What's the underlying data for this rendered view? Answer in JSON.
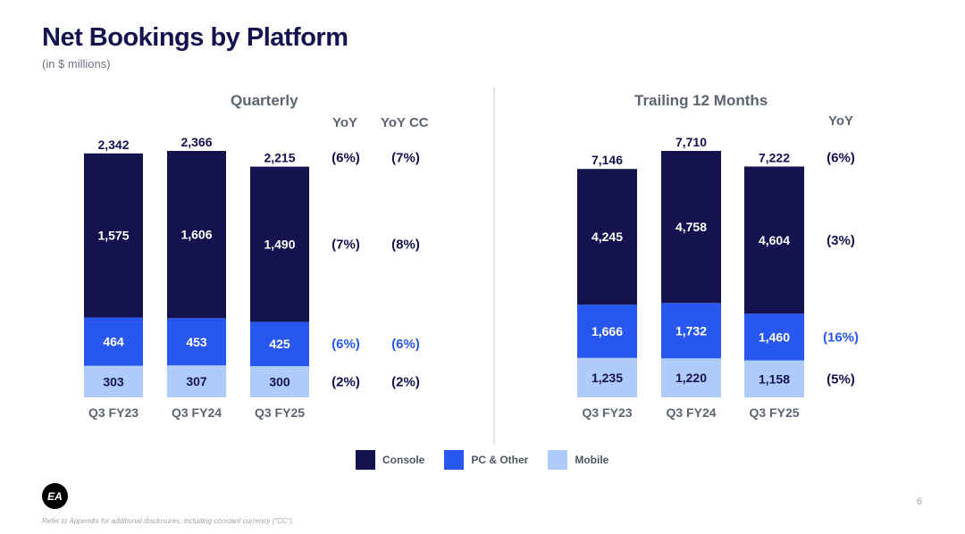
{
  "header": {
    "title": "Net Bookings by Platform",
    "subtitle": "(in $ millions)"
  },
  "legend": [
    {
      "label": "Console",
      "color": "#14124f"
    },
    {
      "label": "PC & Other",
      "color": "#2757f0"
    },
    {
      "label": "Mobile",
      "color": "#aecbfa"
    }
  ],
  "footer": {
    "logo_text": "EA",
    "page_number": "6",
    "footnote": "Refer to Appendix for additional disclosures, including constant currency (\"CC\")."
  },
  "chart_data": [
    {
      "type": "bar",
      "stacked": true,
      "title": "Quarterly",
      "categories": [
        "Q3 FY23",
        "Q3 FY24",
        "Q3 FY25"
      ],
      "series": [
        {
          "name": "Mobile",
          "values": [
            303,
            307,
            300
          ],
          "labels": [
            "303",
            "307",
            "300"
          ],
          "color": "#aecbfa"
        },
        {
          "name": "PC & Other",
          "values": [
            464,
            453,
            425
          ],
          "labels": [
            "464",
            "453",
            "425"
          ],
          "color": "#2757f0"
        },
        {
          "name": "Console",
          "values": [
            1575,
            1606,
            1490
          ],
          "labels": [
            "1,575",
            "1,606",
            "1,490"
          ],
          "color": "#14124f"
        }
      ],
      "totals": [
        2342,
        2366,
        2215
      ],
      "total_labels": [
        "2,342",
        "2,366",
        "2,215"
      ],
      "yoy_columns": [
        "YoY",
        "YoY CC"
      ],
      "yoy": {
        "total": [
          "(6%)",
          "(7%)"
        ],
        "Console": [
          "(7%)",
          "(8%)"
        ],
        "PC & Other": [
          "(6%)",
          "(6%)"
        ],
        "Mobile": [
          "(2%)",
          "(2%)"
        ]
      },
      "ylim": [
        0,
        2400
      ]
    },
    {
      "type": "bar",
      "stacked": true,
      "title": "Trailing 12 Months",
      "categories": [
        "Q3 FY23",
        "Q3 FY24",
        "Q3 FY25"
      ],
      "series": [
        {
          "name": "Mobile",
          "values": [
            1235,
            1220,
            1158
          ],
          "labels": [
            "1,235",
            "1,220",
            "1,158"
          ],
          "color": "#aecbfa"
        },
        {
          "name": "PC & Other",
          "values": [
            1666,
            1732,
            1460
          ],
          "labels": [
            "1,666",
            "1,732",
            "1,460"
          ],
          "color": "#2757f0"
        },
        {
          "name": "Console",
          "values": [
            4245,
            4758,
            4604
          ],
          "labels": [
            "4,245",
            "4,758",
            "4,604"
          ],
          "color": "#14124f"
        }
      ],
      "totals": [
        7146,
        7710,
        7222
      ],
      "total_labels": [
        "7,146",
        "7,710",
        "7,222"
      ],
      "yoy_columns": [
        "YoY"
      ],
      "yoy": {
        "total": [
          "(6%)"
        ],
        "Console": [
          "(3%)"
        ],
        "PC & Other": [
          "(16%)"
        ],
        "Mobile": [
          "(5%)"
        ]
      },
      "ylim": [
        0,
        7800
      ]
    }
  ]
}
